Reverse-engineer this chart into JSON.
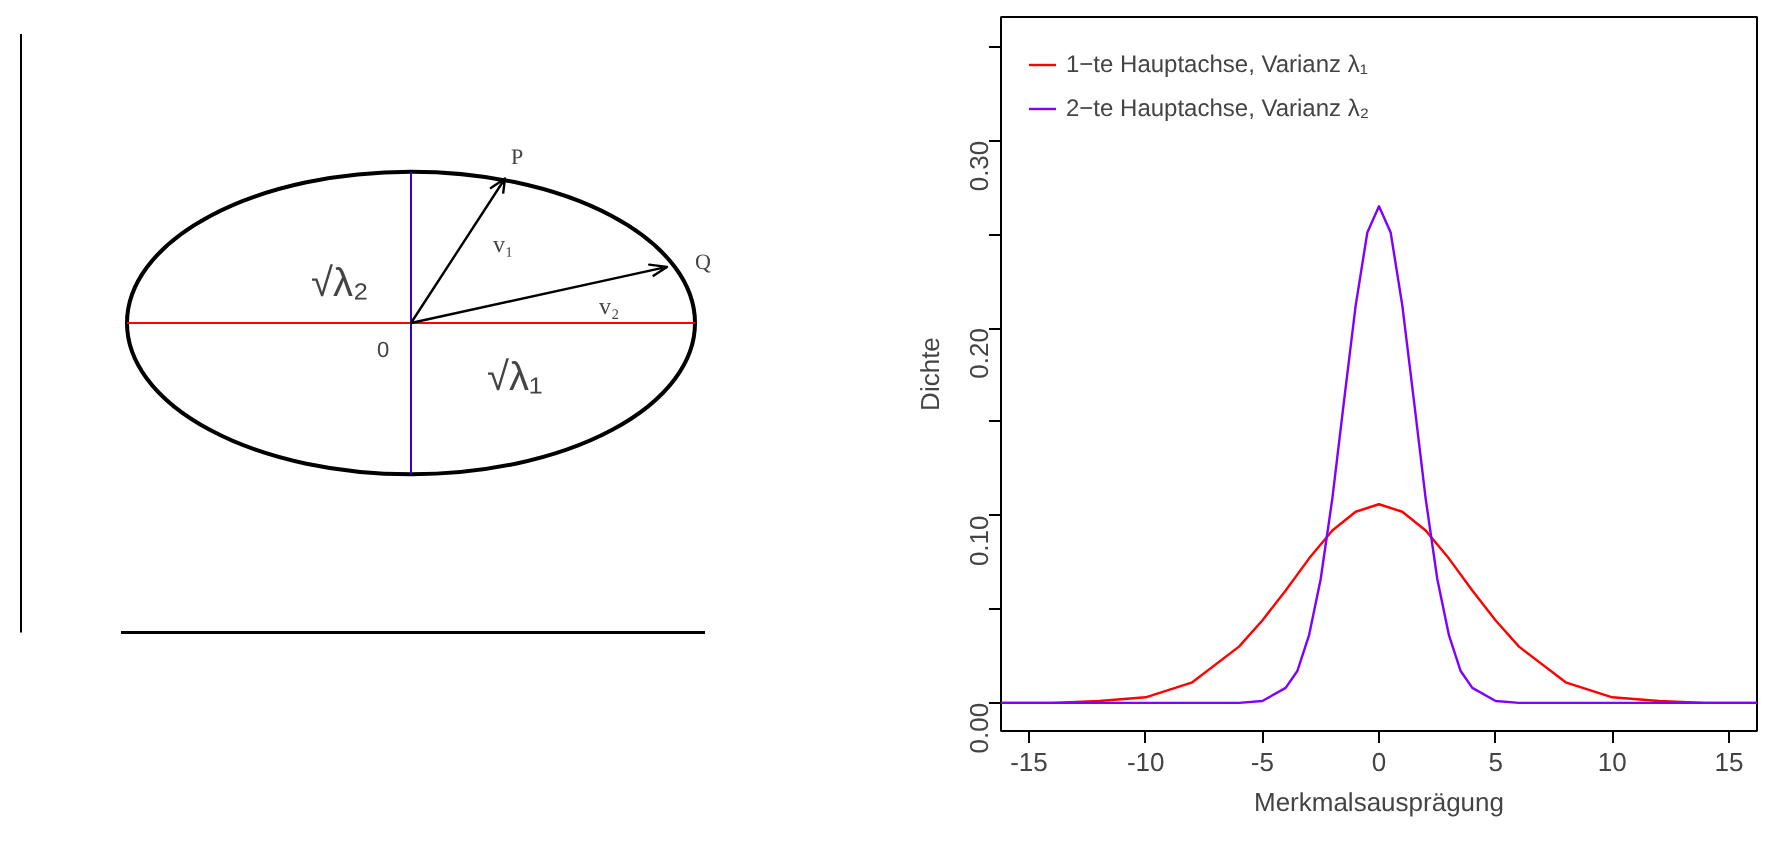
{
  "chart_data": [
    {
      "type": "other",
      "annotations": [
        "P",
        "Q",
        "v₁",
        "v₂",
        "0",
        "√λ₂",
        "√λ₁"
      ]
    },
    {
      "type": "line",
      "xlabel": "Merkmalsausprägung",
      "ylabel": "Dichte",
      "xlim": [
        -16.2,
        16.2
      ],
      "ylim": [
        -0.015,
        0.366
      ],
      "xticks": [
        -15,
        -10,
        -5,
        0,
        5,
        10,
        15
      ],
      "yticks": [
        {
          "value": 0,
          "label": "0.00"
        },
        {
          "value": 0.05,
          "label": null
        },
        {
          "value": 0.1,
          "label": "0.10"
        },
        {
          "value": 0.15,
          "label": null
        },
        {
          "value": 0.2,
          "label": "0.20"
        },
        {
          "value": 0.25,
          "label": null
        },
        {
          "value": 0.3,
          "label": "0.30"
        },
        {
          "value": 0.35,
          "label": null
        }
      ],
      "grid": false,
      "legend": "top left",
      "series": [
        {
          "name": "1−te Hauptachse, Varianz λ₁",
          "color": "#ff0000",
          "x": [
            -16.2,
            -14,
            -12,
            -10,
            -8,
            -6,
            -5,
            -4,
            -3,
            -2,
            -1,
            0,
            1,
            2,
            3,
            4,
            5,
            6,
            8,
            10,
            12,
            14,
            16.2
          ],
          "values": [
            0.0,
            0.0,
            0.001,
            0.003,
            0.011,
            0.03,
            0.044,
            0.06,
            0.077,
            0.092,
            0.102,
            0.106,
            0.102,
            0.092,
            0.077,
            0.06,
            0.044,
            0.03,
            0.011,
            0.003,
            0.001,
            0.0,
            0.0
          ]
        },
        {
          "name": "2−te Hauptachse, Varianz λ₂",
          "color": "#7f00ff",
          "x": [
            -16.2,
            -8,
            -6,
            -5,
            -4,
            -3.5,
            -3,
            -2.5,
            -2,
            -1.5,
            -1,
            -0.5,
            0,
            0.5,
            1,
            1.5,
            2,
            2.5,
            3,
            3.5,
            4,
            5,
            6,
            8,
            16.2
          ],
          "values": [
            0.0,
            0.0,
            0.0,
            0.001,
            0.008,
            0.017,
            0.036,
            0.066,
            0.109,
            0.161,
            0.212,
            0.251,
            0.265,
            0.251,
            0.212,
            0.161,
            0.109,
            0.066,
            0.036,
            0.017,
            0.008,
            0.001,
            0.0,
            0.0,
            0.0
          ]
        }
      ]
    }
  ]
}
